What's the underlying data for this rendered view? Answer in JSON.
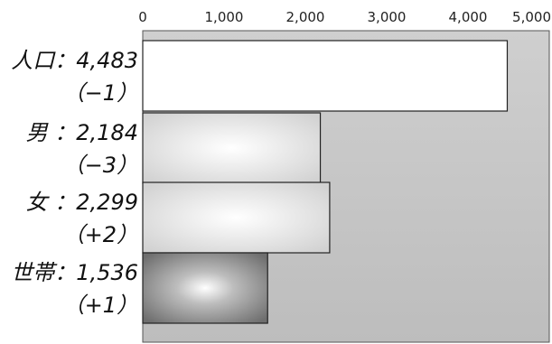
{
  "chart_data": {
    "type": "bar",
    "orientation": "horizontal",
    "xlim": [
      0,
      5000
    ],
    "ticks": [
      {
        "value": 0,
        "label": "0"
      },
      {
        "value": 1000,
        "label": "1,000"
      },
      {
        "value": 2000,
        "label": "2,000"
      },
      {
        "value": 3000,
        "label": "3,000"
      },
      {
        "value": 4000,
        "label": "4,000"
      },
      {
        "value": 5000,
        "label": "5,000"
      }
    ],
    "bars": [
      {
        "category": "人口",
        "value": 4483,
        "label_main": "人口：4,483",
        "label_change": "（−1）"
      },
      {
        "category": "男",
        "value": 2184,
        "label_main": "男 ：2,184",
        "label_change": "（−3）"
      },
      {
        "category": "女",
        "value": 2299,
        "label_main": "女 ：2,299",
        "label_change": "（+2）"
      },
      {
        "category": "世帯",
        "value": 1536,
        "label_main": "世帯：1,536",
        "label_change": "（+1）"
      }
    ],
    "bar_fills": [
      "#ffffff",
      "#d9d9d9",
      "#cfcfcf",
      "#8a8a8a"
    ],
    "plot_background": "#c8c8c8",
    "grid": false,
    "legend": "none"
  }
}
